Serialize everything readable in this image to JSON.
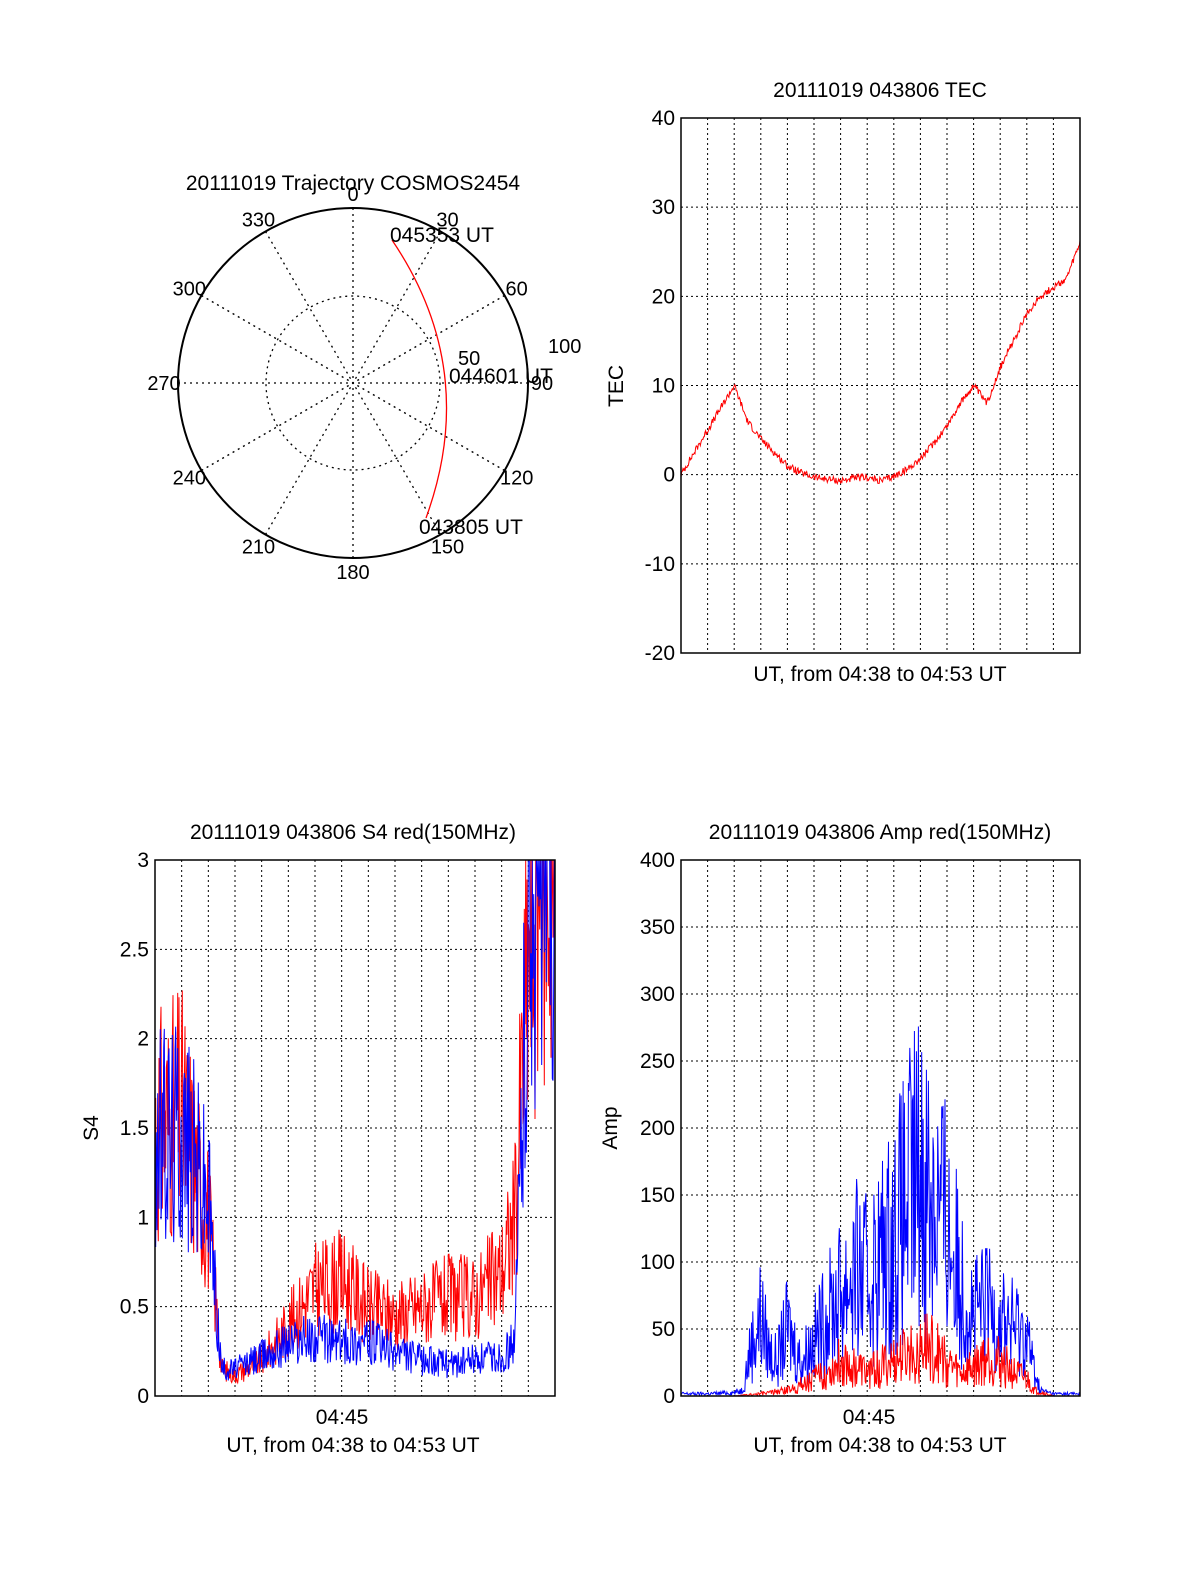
{
  "colors": {
    "red": "#ff0000",
    "blue": "#0000ff",
    "axis": "#000000",
    "grid": "#000000"
  },
  "chart_data": [
    {
      "type": "polar-trajectory",
      "title": "20111019 Trajectory COSMOS2454",
      "angle_labels": [
        "0",
        "30",
        "60",
        "90",
        "120",
        "150",
        "180",
        "210",
        "240",
        "270",
        "300",
        "330"
      ],
      "radial_labels": [
        "50",
        "100"
      ],
      "rlim": [
        0,
        100
      ],
      "points": [
        {
          "label": "045353 UT",
          "azimuth": 26,
          "elevation": 0
        },
        {
          "label": "044601 UT",
          "azimuth": 86,
          "elevation": 45
        },
        {
          "label": "043805 UT",
          "azimuth": 152,
          "elevation": 0
        }
      ],
      "series_color": "red"
    },
    {
      "type": "line",
      "title": "20111019 043806 TEC",
      "xlabel": "UT, from 04:38 to 04:53 UT",
      "ylabel": "TEC",
      "xlim": [
        0,
        15
      ],
      "ylim": [
        -20,
        40
      ],
      "yticks": [
        "-20",
        "-10",
        "0",
        "10",
        "20",
        "30",
        "40"
      ],
      "series": [
        {
          "color": "red",
          "x": [
            0,
            0.5,
            1,
            1.5,
            2,
            2.5,
            3,
            3.5,
            4,
            4.5,
            5,
            5.5,
            6,
            6.5,
            7,
            7.5,
            8,
            8.5,
            9,
            9.5,
            10,
            10.5,
            11,
            11.5,
            12,
            12.5,
            13,
            13.5,
            14,
            14.5,
            15
          ],
          "y": [
            0,
            2.5,
            5,
            7.5,
            10,
            6,
            4,
            2.5,
            1,
            0.2,
            -0.3,
            -0.5,
            -0.7,
            -0.4,
            -0.3,
            -0.7,
            -0.2,
            0.6,
            1.8,
            3.5,
            5.5,
            8,
            10,
            8,
            12,
            15,
            18,
            20,
            21,
            22,
            26
          ]
        }
      ]
    },
    {
      "type": "line",
      "title": "20111019 043806 S4 red(150MHz)",
      "xlabel": "UT, from 04:38 to 04:53 UT",
      "ylabel": "S4",
      "xtick_label": "04:45",
      "xlim": [
        0,
        15
      ],
      "ylim": [
        0,
        3
      ],
      "yticks": [
        "0",
        "0.5",
        "1",
        "1.5",
        "2",
        "2.5",
        "3"
      ],
      "series": [
        {
          "color": "red",
          "x": [
            0,
            1,
            1.5,
            2,
            2.3,
            2.5,
            3,
            4,
            5,
            6,
            7,
            8,
            9,
            10,
            11,
            12,
            13,
            13.5,
            14,
            14.5,
            15
          ],
          "y": [
            1.5,
            1.6,
            1.3,
            1.0,
            0.5,
            0.15,
            0.12,
            0.2,
            0.4,
            0.6,
            0.65,
            0.5,
            0.45,
            0.5,
            0.55,
            0.55,
            0.7,
            1.0,
            2.5,
            3,
            3
          ]
        },
        {
          "color": "blue",
          "x": [
            0,
            1,
            1.5,
            2,
            2.3,
            2.5,
            3,
            4,
            5,
            6,
            7,
            8,
            9,
            10,
            11,
            12,
            13,
            13.5,
            14,
            14.5,
            15
          ],
          "y": [
            1.4,
            1.5,
            1.3,
            1.1,
            0.5,
            0.15,
            0.15,
            0.22,
            0.3,
            0.32,
            0.3,
            0.3,
            0.25,
            0.2,
            0.18,
            0.2,
            0.22,
            0.3,
            2.8,
            3,
            3
          ]
        }
      ]
    },
    {
      "type": "line",
      "title": "20111019 043806 Amp red(150MHz)",
      "xlabel": "UT, from 04:38 to 04:53 UT",
      "ylabel": "Amp",
      "xtick_label": "04:45",
      "xlim": [
        0,
        15
      ],
      "ylim": [
        0,
        400
      ],
      "yticks": [
        "0",
        "50",
        "100",
        "150",
        "200",
        "250",
        "300",
        "350",
        "400"
      ],
      "series": [
        {
          "color": "blue",
          "x": [
            0,
            1,
            2,
            2.3,
            2.6,
            3,
            3.3,
            3.6,
            4,
            4.5,
            5,
            5.5,
            6,
            6.5,
            7,
            7.5,
            8,
            8.5,
            9,
            9.5,
            10,
            10.5,
            11,
            11.5,
            12,
            12.5,
            13,
            13.2,
            13.5,
            14,
            15
          ],
          "y": [
            2,
            2,
            3,
            5,
            40,
            70,
            40,
            30,
            60,
            30,
            50,
            70,
            90,
            110,
            100,
            120,
            140,
            170,
            200,
            180,
            150,
            100,
            70,
            80,
            70,
            60,
            55,
            30,
            5,
            2,
            2
          ]
        },
        {
          "color": "red",
          "x": [
            0,
            2,
            3,
            4,
            4.5,
            5,
            5.5,
            6,
            6.5,
            7,
            7.5,
            8,
            8.5,
            9,
            9.5,
            10,
            10.5,
            11,
            11.5,
            12,
            12.5,
            13,
            13.3,
            14,
            15
          ],
          "y": [
            0,
            0,
            2,
            5,
            10,
            15,
            20,
            30,
            25,
            20,
            25,
            30,
            35,
            45,
            40,
            30,
            20,
            25,
            35,
            30,
            20,
            15,
            5,
            0,
            0
          ]
        }
      ]
    }
  ]
}
